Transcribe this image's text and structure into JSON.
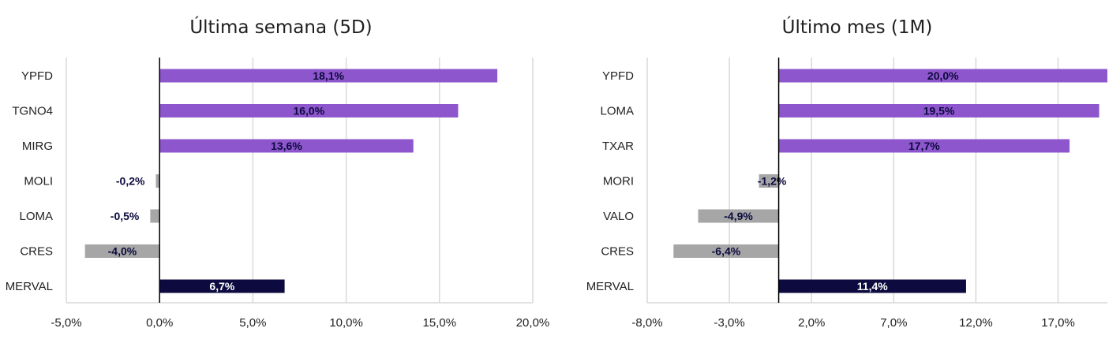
{
  "colors": {
    "positive": "#8e56cc",
    "negative": "#a6a6a6",
    "index": "#0c0a3e",
    "grid": "#d9d9d9",
    "zero_axis": "#000000",
    "label_dark": "#0c0a3e",
    "label_light": "#ffffff"
  },
  "chart_data": [
    {
      "type": "bar",
      "orientation": "horizontal",
      "title": "Última semana (5D)",
      "categories": [
        "YPFD",
        "TGNO4",
        "MIRG",
        "MOLI",
        "LOMA",
        "CRES",
        "MERVAL"
      ],
      "values": [
        18.1,
        16.0,
        13.6,
        -0.2,
        -0.5,
        -4.0,
        6.7
      ],
      "value_labels": [
        "18,1%",
        "16,0%",
        "13,6%",
        "-0,2%",
        "-0,5%",
        "-4,0%",
        "6,7%"
      ],
      "xlim": [
        -5,
        20
      ],
      "xticks": [
        -5,
        0,
        5,
        10,
        15,
        20
      ],
      "xtick_labels": [
        "-5,0%",
        "0,0%",
        "5,0%",
        "10,0%",
        "15,0%",
        "20,0%"
      ],
      "grid": true,
      "legend": "none"
    },
    {
      "type": "bar",
      "orientation": "horizontal",
      "title": "Último mes (1M)",
      "categories": [
        "YPFD",
        "LOMA",
        "TXAR",
        "MORI",
        "VALO",
        "CRES",
        "MERVAL"
      ],
      "values": [
        20.0,
        19.5,
        17.7,
        -1.2,
        -4.9,
        -6.4,
        11.4
      ],
      "value_labels": [
        "20,0%",
        "19,5%",
        "17,7%",
        "-1,2%",
        "-4,9%",
        "-6,4%",
        "11,4%"
      ],
      "xlim": [
        -8,
        20
      ],
      "xticks": [
        -8,
        -3,
        2,
        7,
        12,
        17
      ],
      "xtick_labels": [
        "-8,0%",
        "-3,0%",
        "2,0%",
        "7,0%",
        "12,0%",
        "17,0%"
      ],
      "grid": true,
      "legend": "none"
    }
  ]
}
